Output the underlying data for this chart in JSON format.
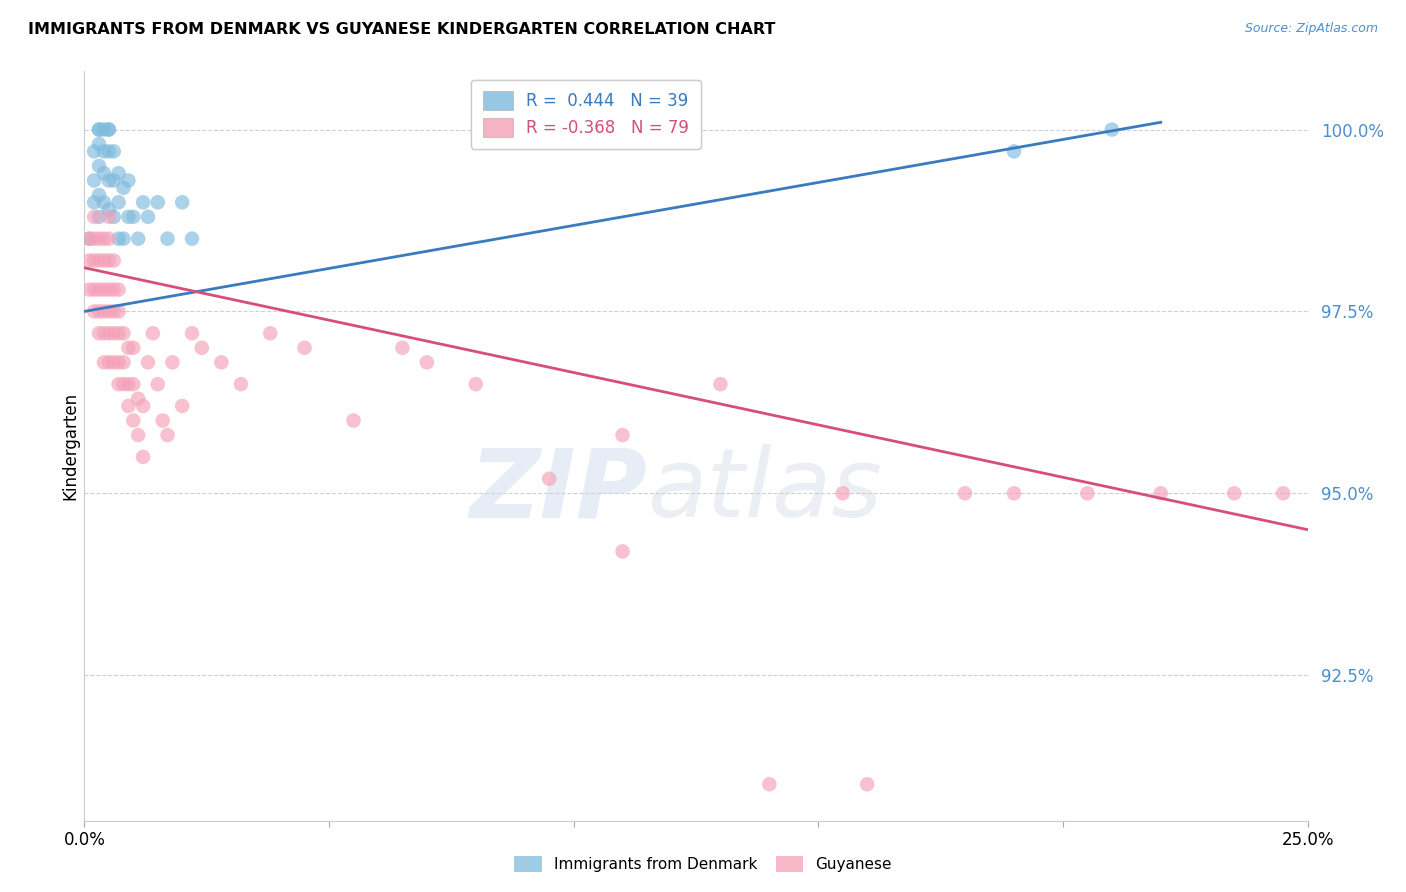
{
  "title": "IMMIGRANTS FROM DENMARK VS GUYANESE KINDERGARTEN CORRELATION CHART",
  "source": "Source: ZipAtlas.com",
  "ylabel": "Kindergarten",
  "ytick_labels": [
    "92.5%",
    "95.0%",
    "97.5%",
    "100.0%"
  ],
  "ytick_values": [
    0.925,
    0.95,
    0.975,
    1.0
  ],
  "xlim": [
    0.0,
    0.25
  ],
  "ylim": [
    0.905,
    1.008
  ],
  "legend_blue_text": "R =  0.444   N = 39",
  "legend_pink_text": "R = -0.368   N = 79",
  "blue_color": "#7fbadc",
  "pink_color": "#f4a0b8",
  "trendline_blue": "#3a7abf",
  "trendline_pink": "#d64f7a",
  "blue_scatter_x": [
    0.001,
    0.002,
    0.002,
    0.002,
    0.003,
    0.003,
    0.003,
    0.003,
    0.003,
    0.003,
    0.004,
    0.004,
    0.004,
    0.004,
    0.005,
    0.005,
    0.005,
    0.005,
    0.005,
    0.006,
    0.006,
    0.006,
    0.007,
    0.007,
    0.007,
    0.008,
    0.008,
    0.009,
    0.009,
    0.01,
    0.011,
    0.012,
    0.013,
    0.015,
    0.017,
    0.02,
    0.022,
    0.19,
    0.21
  ],
  "blue_scatter_y": [
    0.985,
    0.99,
    0.993,
    0.997,
    0.988,
    0.991,
    0.995,
    0.998,
    1.0,
    1.0,
    0.99,
    0.994,
    0.997,
    1.0,
    0.989,
    0.993,
    0.997,
    1.0,
    1.0,
    0.988,
    0.993,
    0.997,
    0.985,
    0.99,
    0.994,
    0.985,
    0.992,
    0.988,
    0.993,
    0.988,
    0.985,
    0.99,
    0.988,
    0.99,
    0.985,
    0.99,
    0.985,
    0.997,
    1.0
  ],
  "pink_scatter_x": [
    0.001,
    0.001,
    0.001,
    0.002,
    0.002,
    0.002,
    0.002,
    0.002,
    0.003,
    0.003,
    0.003,
    0.003,
    0.003,
    0.004,
    0.004,
    0.004,
    0.004,
    0.004,
    0.004,
    0.005,
    0.005,
    0.005,
    0.005,
    0.005,
    0.005,
    0.005,
    0.006,
    0.006,
    0.006,
    0.006,
    0.006,
    0.007,
    0.007,
    0.007,
    0.007,
    0.007,
    0.008,
    0.008,
    0.008,
    0.009,
    0.009,
    0.009,
    0.01,
    0.01,
    0.01,
    0.011,
    0.011,
    0.012,
    0.012,
    0.013,
    0.014,
    0.015,
    0.016,
    0.017,
    0.018,
    0.02,
    0.022,
    0.024,
    0.028,
    0.032,
    0.038,
    0.045,
    0.055,
    0.07,
    0.08,
    0.095,
    0.11,
    0.13,
    0.155,
    0.18,
    0.19,
    0.205,
    0.22,
    0.235,
    0.245,
    0.11,
    0.065,
    0.14,
    0.16
  ],
  "pink_scatter_y": [
    0.978,
    0.982,
    0.985,
    0.975,
    0.978,
    0.982,
    0.985,
    0.988,
    0.972,
    0.975,
    0.978,
    0.982,
    0.985,
    0.968,
    0.972,
    0.975,
    0.978,
    0.982,
    0.985,
    0.968,
    0.972,
    0.975,
    0.978,
    0.982,
    0.985,
    0.988,
    0.968,
    0.972,
    0.975,
    0.978,
    0.982,
    0.965,
    0.968,
    0.972,
    0.975,
    0.978,
    0.965,
    0.968,
    0.972,
    0.962,
    0.965,
    0.97,
    0.96,
    0.965,
    0.97,
    0.958,
    0.963,
    0.955,
    0.962,
    0.968,
    0.972,
    0.965,
    0.96,
    0.958,
    0.968,
    0.962,
    0.972,
    0.97,
    0.968,
    0.965,
    0.972,
    0.97,
    0.96,
    0.968,
    0.965,
    0.952,
    0.958,
    0.965,
    0.95,
    0.95,
    0.95,
    0.95,
    0.95,
    0.95,
    0.95,
    0.942,
    0.97,
    0.91,
    0.91
  ],
  "blue_trendline_x": [
    0.0,
    0.22
  ],
  "blue_trendline_y": [
    0.975,
    1.001
  ],
  "pink_trendline_x": [
    0.0,
    0.25
  ],
  "pink_trendline_y": [
    0.981,
    0.945
  ],
  "watermark_zip": "ZIP",
  "watermark_atlas": "atlas",
  "background_color": "#ffffff",
  "grid_color": "#d0d0d0",
  "grid_linestyle": "--",
  "ytick_color": "#4d8fcc",
  "xtick_positions": [
    0.0,
    0.05,
    0.1,
    0.15,
    0.2,
    0.25
  ],
  "xtick_label_positions": [
    0.0,
    0.25
  ],
  "xtick_labels": [
    "0.0%",
    "25.0%"
  ]
}
